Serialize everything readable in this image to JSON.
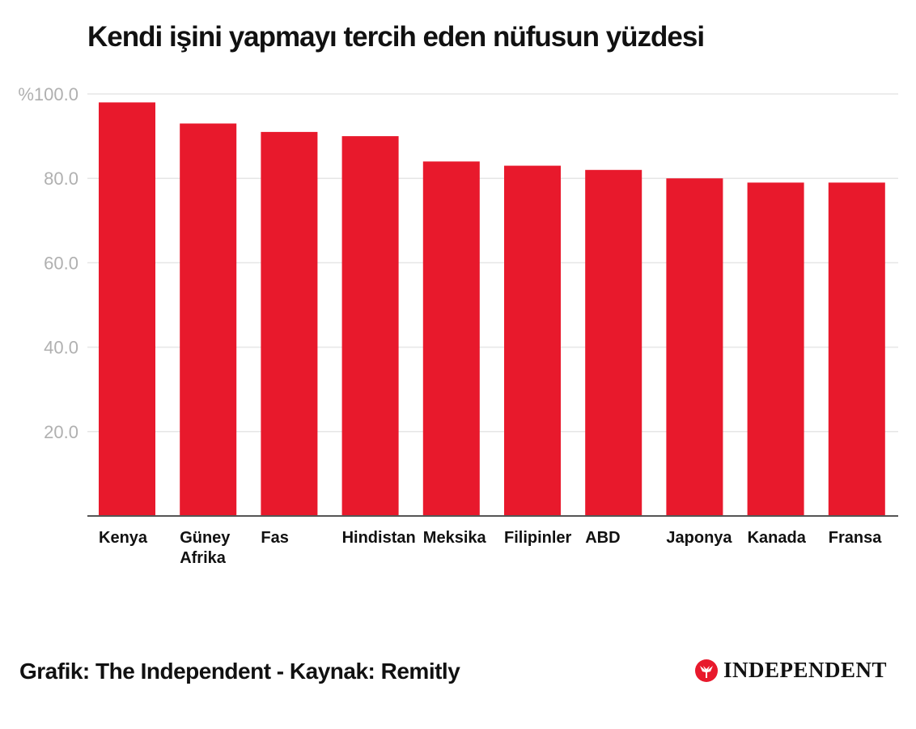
{
  "title": "Kendi işini yapmayı tercih eden nüfusun yüzdesi",
  "footer": "Grafik: The Independent - Kaynak: Remitly",
  "logo": {
    "icon": "eagle-emblem-icon",
    "text": "INDEPENDENT"
  },
  "colors": {
    "bar": "#E8192C",
    "grid": "#e6e6e6",
    "axis": "#555555",
    "tick_label": "#b0b0b0",
    "category_label": "#111111"
  },
  "chart_data": {
    "type": "bar",
    "categories": [
      [
        "Kenya"
      ],
      [
        "Güney",
        "Afrika"
      ],
      [
        "Fas"
      ],
      [
        "Hindistan"
      ],
      [
        "Meksika"
      ],
      [
        "Filipinler"
      ],
      [
        "ABD"
      ],
      [
        "Japonya"
      ],
      [
        "Kanada"
      ],
      [
        "Fransa"
      ]
    ],
    "values": [
      98,
      93,
      91,
      90,
      84,
      83,
      82,
      80,
      79,
      79
    ],
    "yticks": [
      20,
      40,
      60,
      80,
      100
    ],
    "ytick_labels": [
      "20.0",
      "40.0",
      "60.0",
      "80.0",
      "%100.0"
    ],
    "ylim": [
      0,
      100
    ],
    "grid": true,
    "xlabel": "",
    "ylabel": ""
  }
}
